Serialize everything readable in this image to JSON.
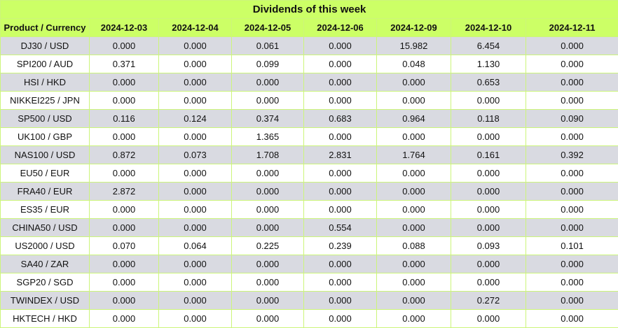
{
  "table": {
    "title": "Dividends of this week",
    "columns": [
      "Product / Currency",
      "2024-12-03",
      "2024-12-04",
      "2024-12-05",
      "2024-12-06",
      "2024-12-09",
      "2024-12-10",
      "2024-12-11"
    ],
    "rows": [
      [
        "DJ30 / USD",
        "0.000",
        "0.000",
        "0.061",
        "0.000",
        "15.982",
        "6.454",
        "0.000"
      ],
      [
        "SPI200 / AUD",
        "0.371",
        "0.000",
        "0.099",
        "0.000",
        "0.048",
        "1.130",
        "0.000"
      ],
      [
        "HSI / HKD",
        "0.000",
        "0.000",
        "0.000",
        "0.000",
        "0.000",
        "0.653",
        "0.000"
      ],
      [
        "NIKKEI225 / JPN",
        "0.000",
        "0.000",
        "0.000",
        "0.000",
        "0.000",
        "0.000",
        "0.000"
      ],
      [
        "SP500 / USD",
        "0.116",
        "0.124",
        "0.374",
        "0.683",
        "0.964",
        "0.118",
        "0.090"
      ],
      [
        "UK100 / GBP",
        "0.000",
        "0.000",
        "1.365",
        "0.000",
        "0.000",
        "0.000",
        "0.000"
      ],
      [
        "NAS100 / USD",
        "0.872",
        "0.073",
        "1.708",
        "2.831",
        "1.764",
        "0.161",
        "0.392"
      ],
      [
        "EU50 / EUR",
        "0.000",
        "0.000",
        "0.000",
        "0.000",
        "0.000",
        "0.000",
        "0.000"
      ],
      [
        "FRA40 / EUR",
        "2.872",
        "0.000",
        "0.000",
        "0.000",
        "0.000",
        "0.000",
        "0.000"
      ],
      [
        "ES35 / EUR",
        "0.000",
        "0.000",
        "0.000",
        "0.000",
        "0.000",
        "0.000",
        "0.000"
      ],
      [
        "CHINA50 / USD",
        "0.000",
        "0.000",
        "0.000",
        "0.554",
        "0.000",
        "0.000",
        "0.000"
      ],
      [
        "US2000 / USD",
        "0.070",
        "0.064",
        "0.225",
        "0.239",
        "0.088",
        "0.093",
        "0.101"
      ],
      [
        "SA40 / ZAR",
        "0.000",
        "0.000",
        "0.000",
        "0.000",
        "0.000",
        "0.000",
        "0.000"
      ],
      [
        "SGP20 / SGD",
        "0.000",
        "0.000",
        "0.000",
        "0.000",
        "0.000",
        "0.000",
        "0.000"
      ],
      [
        "TWINDEX / USD",
        "0.000",
        "0.000",
        "0.000",
        "0.000",
        "0.000",
        "0.272",
        "0.000"
      ],
      [
        "HKTECH / HKD",
        "0.000",
        "0.000",
        "0.000",
        "0.000",
        "0.000",
        "0.000",
        "0.000"
      ]
    ]
  }
}
